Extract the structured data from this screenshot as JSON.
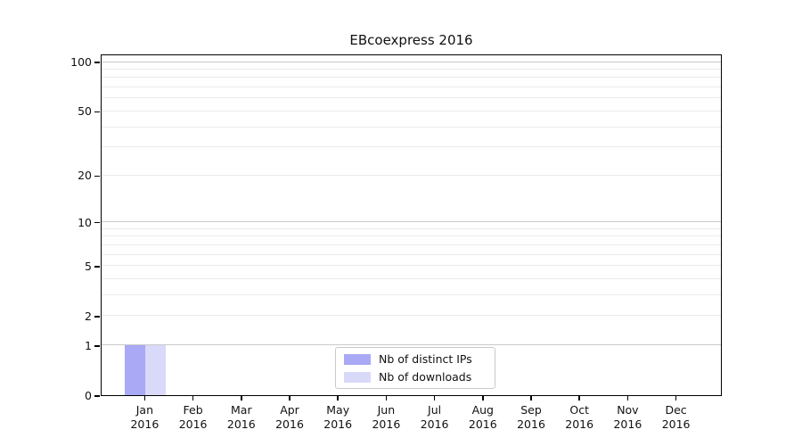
{
  "chart_data": {
    "type": "bar",
    "title": "EBcoexpress 2016",
    "categories": [
      "Jan",
      "Feb",
      "Mar",
      "Apr",
      "May",
      "Jun",
      "Jul",
      "Aug",
      "Sep",
      "Oct",
      "Nov",
      "Dec"
    ],
    "category_year": "2016",
    "series": [
      {
        "name": "Nb of distinct IPs",
        "color": "#a9a9f6",
        "values": [
          1,
          0,
          0,
          0,
          0,
          0,
          0,
          0,
          0,
          0,
          0,
          0
        ]
      },
      {
        "name": "Nb of downloads",
        "color": "#d9d9f9",
        "values": [
          1,
          0,
          0,
          0,
          0,
          0,
          0,
          0,
          0,
          0,
          0,
          0
        ]
      }
    ],
    "yscale": "log1p",
    "ylim": [
      0,
      111
    ],
    "yticks": [
      0,
      1,
      2,
      5,
      10,
      20,
      50,
      100
    ],
    "major_gridlines": [
      1,
      10,
      100
    ],
    "minor_gridlines": [
      2,
      3,
      4,
      5,
      6,
      7,
      8,
      9,
      20,
      30,
      40,
      50,
      60,
      70,
      80,
      90
    ],
    "grid": true,
    "legend_position": "bottom-center",
    "colors": {
      "major_grid": "#c9c9c9",
      "minor_grid": "#ebebeb",
      "axis": "#000000",
      "text": "#111111"
    }
  }
}
